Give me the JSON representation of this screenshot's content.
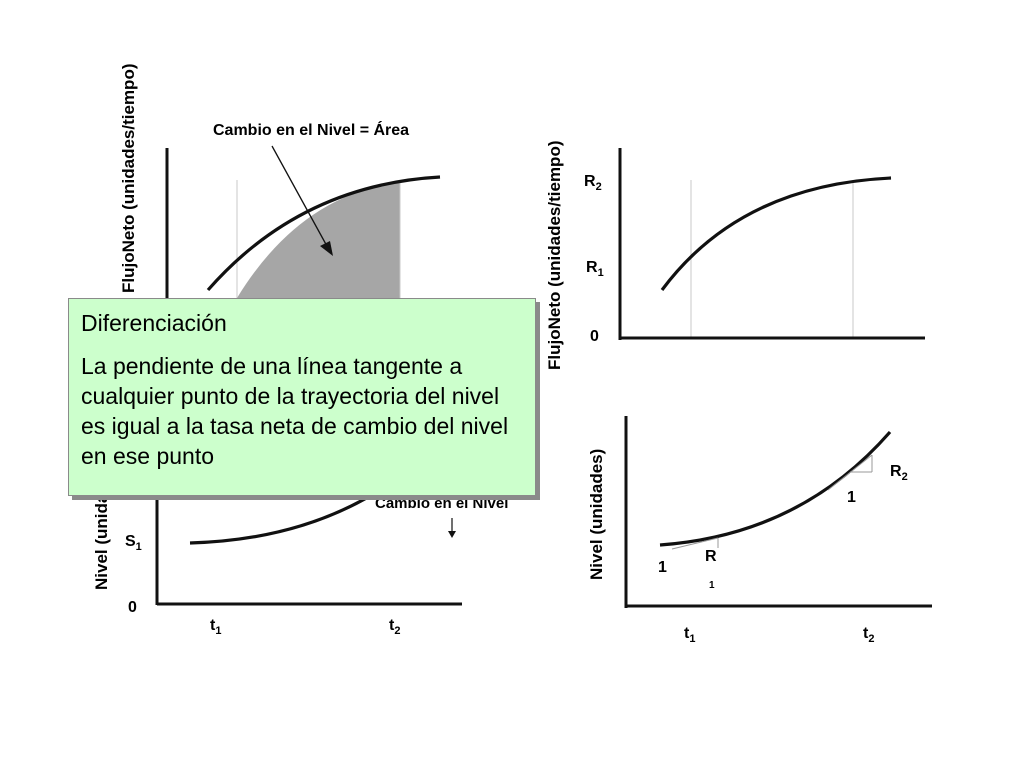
{
  "left_panel": {
    "top_ylabel": "FlujoNeto (unidades/tiempo)",
    "area_label": "Cambio en el Nivel = Área",
    "bottom_ylabel": "Nivel (unidades)",
    "change_label": "Cambio en el Nivel",
    "s1": "S",
    "s1_sub": "1",
    "zero": "0",
    "t1": "t",
    "t1_sub": "1",
    "t2": "t",
    "t2_sub": "2"
  },
  "right_top": {
    "ylabel": "FlujoNeto (unidades/tiempo)",
    "r2": "R",
    "r2_sub": "2",
    "r1": "R",
    "r1_sub": "1",
    "zero": "0"
  },
  "right_bottom": {
    "ylabel": "Nivel (unidades)",
    "r2": "R",
    "r2_sub": "2",
    "one_upper": "1",
    "one_lower": "1",
    "r1": "R",
    "r1_sub": "1",
    "t1": "t",
    "t1_sub": "1",
    "t2": "t",
    "t2_sub": "2"
  },
  "callout": {
    "title": "Diferenciación",
    "body": "La pendiente de una línea tangente a cualquier punto de la trayectoria del nivel es igual a la tasa neta  de cambio del nivel en ese punto"
  },
  "colors": {
    "area_fill": "#a6a6a6",
    "callout_fill": "#ccffcc"
  }
}
